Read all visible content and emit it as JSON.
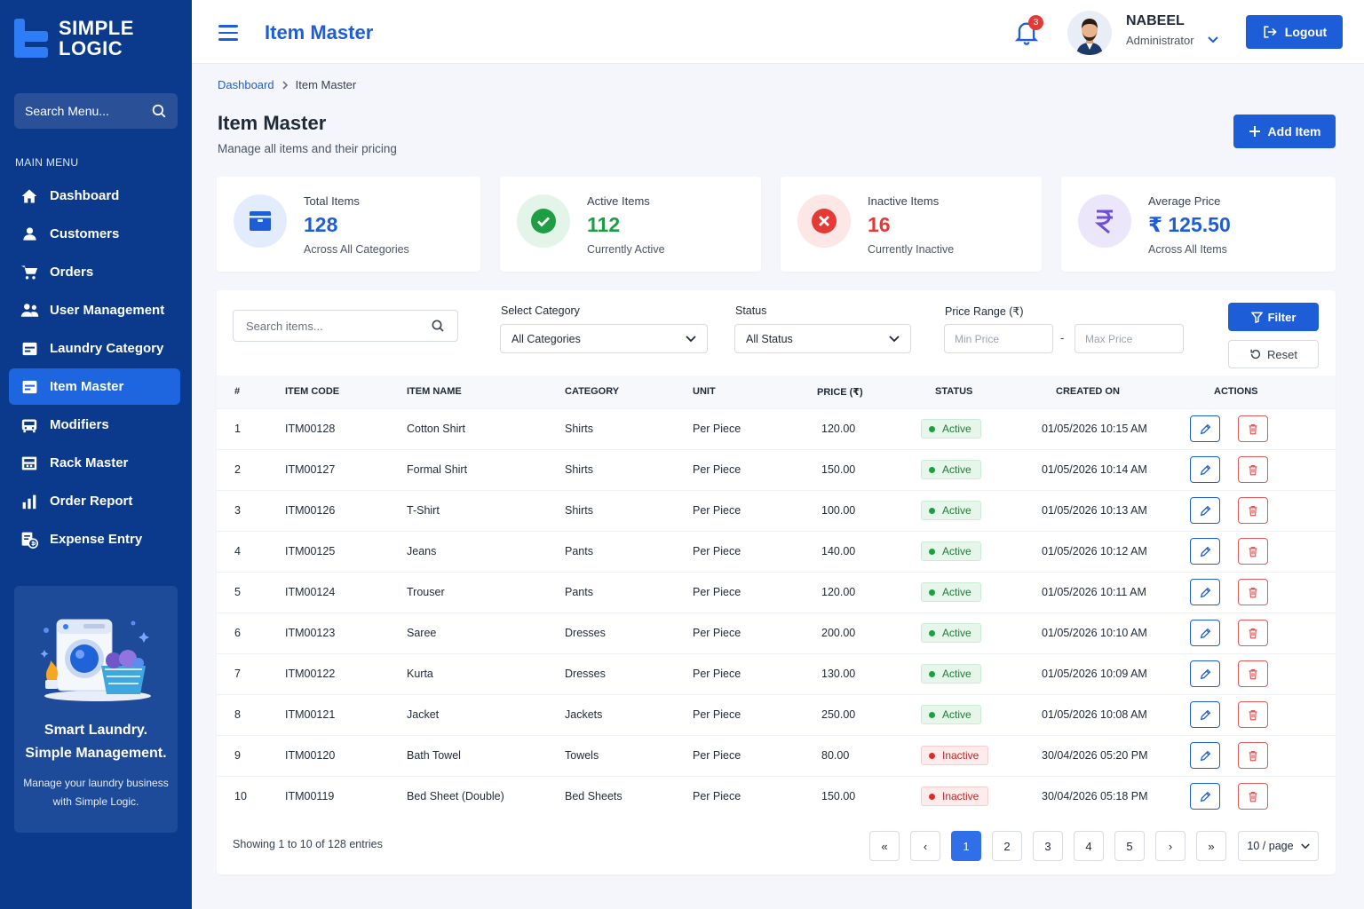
{
  "brand": {
    "name_line1": "SIMPLE",
    "name_line2": "LOGIC"
  },
  "sidebar": {
    "search_placeholder": "Search Menu...",
    "menu_title": "MAIN MENU",
    "items": [
      {
        "label": "Dashboard",
        "icon": "home-icon"
      },
      {
        "label": "Customers",
        "icon": "user-icon"
      },
      {
        "label": "Orders",
        "icon": "cart-icon"
      },
      {
        "label": "User Management",
        "icon": "users-icon"
      },
      {
        "label": "Laundry Category",
        "icon": "category-icon"
      },
      {
        "label": "Item Master",
        "icon": "item-master-icon",
        "active": true
      },
      {
        "label": "Modifiers",
        "icon": "modifiers-icon"
      },
      {
        "label": "Rack Master",
        "icon": "rack-icon"
      },
      {
        "label": "Order Report",
        "icon": "bar-chart-icon"
      },
      {
        "label": "Expense Entry",
        "icon": "expense-icon"
      }
    ],
    "promo": {
      "headline_line1": "Smart Laundry.",
      "headline_line2": "Simple Management.",
      "text": "Manage your laundry business with Simple Logic."
    }
  },
  "header": {
    "title": "Item Master",
    "notifications": "3",
    "user_name": "NABEEL",
    "user_role": "Administrator",
    "logout_label": "Logout"
  },
  "breadcrumb": {
    "home": "Dashboard",
    "current": "Item Master"
  },
  "page": {
    "title": "Item Master",
    "subtitle": "Manage all items and their pricing",
    "add_label": "Add Item"
  },
  "stats": [
    {
      "label": "Total Items",
      "value": "128",
      "note": "Across All Categories",
      "color": "#1d5ed8"
    },
    {
      "label": "Active Items",
      "value": "112",
      "note": "Currently Active",
      "color": "#1f9d45"
    },
    {
      "label": "Inactive Items",
      "value": "16",
      "note": "Currently Inactive",
      "color": "#e53935"
    },
    {
      "label": "Average Price",
      "value": "₹ 125.50",
      "note": "Across All Items",
      "color": "#1d5ed8"
    }
  ],
  "filters": {
    "search_placeholder": "Search items...",
    "category_label": "Select Category",
    "category_value": "All Categories",
    "status_label": "Status",
    "status_value": "All Status",
    "price_label": "Price Range (₹)",
    "min_placeholder": "Min Price",
    "separator": "-",
    "max_placeholder": "Max Price",
    "filter_label": "Filter",
    "reset_label": "Reset"
  },
  "table": {
    "columns": [
      "#",
      "ITEM CODE",
      "ITEM NAME",
      "CATEGORY",
      "UNIT",
      "PRICE (₹)",
      "STATUS",
      "CREATED ON",
      "ACTIONS"
    ],
    "rows": [
      {
        "n": "1",
        "code": "ITM00128",
        "name": "Cotton Shirt",
        "category": "Shirts",
        "unit": "Per Piece",
        "price": "120.00",
        "status": "Active",
        "created": "01/05/2026 10:15 AM"
      },
      {
        "n": "2",
        "code": "ITM00127",
        "name": "Formal Shirt",
        "category": "Shirts",
        "unit": "Per Piece",
        "price": "150.00",
        "status": "Active",
        "created": "01/05/2026 10:14 AM"
      },
      {
        "n": "3",
        "code": "ITM00126",
        "name": "T-Shirt",
        "category": "Shirts",
        "unit": "Per Piece",
        "price": "100.00",
        "status": "Active",
        "created": "01/05/2026 10:13 AM"
      },
      {
        "n": "4",
        "code": "ITM00125",
        "name": "Jeans",
        "category": "Pants",
        "unit": "Per Piece",
        "price": "140.00",
        "status": "Active",
        "created": "01/05/2026 10:12 AM"
      },
      {
        "n": "5",
        "code": "ITM00124",
        "name": "Trouser",
        "category": "Pants",
        "unit": "Per Piece",
        "price": "120.00",
        "status": "Active",
        "created": "01/05/2026 10:11 AM"
      },
      {
        "n": "6",
        "code": "ITM00123",
        "name": "Saree",
        "category": "Dresses",
        "unit": "Per Piece",
        "price": "200.00",
        "status": "Active",
        "created": "01/05/2026 10:10 AM"
      },
      {
        "n": "7",
        "code": "ITM00122",
        "name": "Kurta",
        "category": "Dresses",
        "unit": "Per Piece",
        "price": "130.00",
        "status": "Active",
        "created": "01/05/2026 10:09 AM"
      },
      {
        "n": "8",
        "code": "ITM00121",
        "name": "Jacket",
        "category": "Jackets",
        "unit": "Per Piece",
        "price": "250.00",
        "status": "Active",
        "created": "01/05/2026 10:08 AM"
      },
      {
        "n": "9",
        "code": "ITM00120",
        "name": "Bath Towel",
        "category": "Towels",
        "unit": "Per Piece",
        "price": "80.00",
        "status": "Inactive",
        "created": "30/04/2026 05:20 PM"
      },
      {
        "n": "10",
        "code": "ITM00119",
        "name": "Bed Sheet (Double)",
        "category": "Bed Sheets",
        "unit": "Per Piece",
        "price": "150.00",
        "status": "Inactive",
        "created": "30/04/2026 05:18 PM"
      }
    ]
  },
  "pagination": {
    "showing": "Showing 1 to 10 of 128 entries",
    "first": "«",
    "prev": "‹",
    "pages": [
      "1",
      "2",
      "3",
      "4",
      "5"
    ],
    "current": "1",
    "next": "›",
    "last": "»",
    "per_page": "10 / page"
  }
}
